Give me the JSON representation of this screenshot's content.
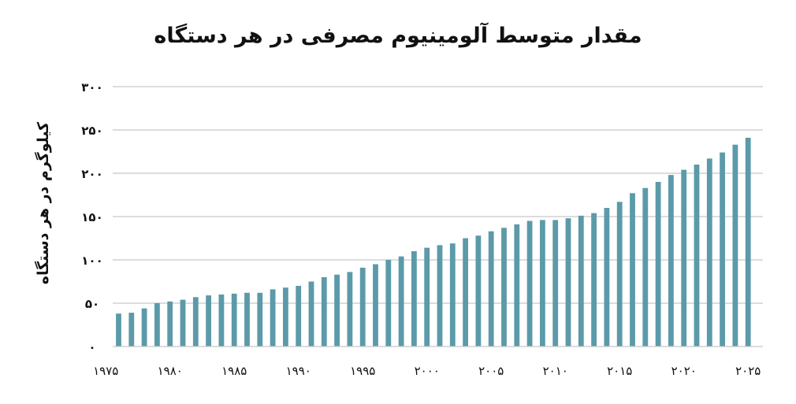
{
  "chart_data": {
    "type": "bar",
    "title": "مقدار متوسط آلومینیوم مصرفی در هر دستگاه",
    "xlabel": "",
    "ylabel": "کیلوگرم در هر دستگاه",
    "ylim": [
      0,
      300
    ],
    "y_ticks": [
      0,
      50,
      100,
      150,
      200,
      250,
      300
    ],
    "y_tick_labels": [
      "۰",
      "۵۰",
      "۱۰۰",
      "۱۵۰",
      "۲۰۰",
      "۲۵۰",
      "۳۰۰"
    ],
    "x_tick_labels": [
      "۱۹۷۵",
      "۱۹۸۰",
      "۱۹۸۵",
      "۱۹۹۰",
      "۱۹۹۵",
      "۲۰۰۰",
      "۲۰۰۵",
      "۲۰۱۰",
      "۲۰۱۵",
      "۲۰۲۰",
      "۲۰۲۵"
    ],
    "x_tick_years": [
      1975,
      1980,
      1985,
      1990,
      1995,
      2000,
      2005,
      2010,
      2015,
      2020,
      2025
    ],
    "grid": true,
    "bar_color": "#5b9aa9",
    "categories": [
      1976,
      1977,
      1978,
      1979,
      1980,
      1981,
      1982,
      1983,
      1984,
      1985,
      1986,
      1987,
      1988,
      1989,
      1990,
      1991,
      1992,
      1993,
      1994,
      1995,
      1996,
      1997,
      1998,
      1999,
      2000,
      2001,
      2002,
      2003,
      2004,
      2005,
      2006,
      2007,
      2008,
      2009,
      2010,
      2011,
      2012,
      2013,
      2014,
      2015,
      2016,
      2017,
      2018,
      2019,
      2020,
      2021,
      2022,
      2023,
      2024,
      2025
    ],
    "values": [
      38,
      39,
      44,
      50,
      52,
      54,
      57,
      59,
      60,
      61,
      62,
      62,
      66,
      68,
      70,
      75,
      80,
      83,
      86,
      91,
      95,
      100,
      104,
      110,
      114,
      117,
      119,
      125,
      128,
      133,
      137,
      141,
      145,
      146,
      146,
      148,
      151,
      154,
      160,
      167,
      177,
      183,
      190,
      198,
      204,
      210,
      217,
      224,
      233,
      241
    ]
  }
}
